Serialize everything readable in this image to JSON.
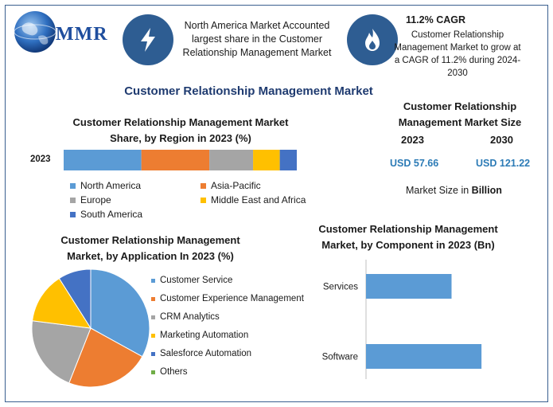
{
  "logo": {
    "text": "MMR"
  },
  "header": {
    "info1_icon": "lightning-bolt-icon",
    "info1_text": "North America Market Accounted largest share in the Customer Relationship Management Market",
    "info2_icon": "flame-icon",
    "info2_title": "11.2% CAGR",
    "info2_text": "Customer Relationship Management Market to grow at a CAGR of 11.2% during 2024-2030"
  },
  "main_title": "Customer Relationship Management Market",
  "market_size": {
    "title": "Customer Relationship Management Market Size",
    "year1": "2023",
    "year2": "2030",
    "value1": "USD 57.66",
    "value2": "USD 121.22",
    "note_prefix": "Market Size in ",
    "note_unit": "Billion"
  },
  "chart_data": [
    {
      "type": "bar",
      "orientation": "horizontal-stacked",
      "title": "Customer Relationship Management Market Share, by Region in 2023 (%)",
      "categories": [
        "2023"
      ],
      "series": [
        {
          "name": "North America",
          "values": [
            32
          ],
          "color": "#5b9bd5"
        },
        {
          "name": "Asia-Pacific",
          "values": [
            28
          ],
          "color": "#ed7d31"
        },
        {
          "name": "Europe",
          "values": [
            18
          ],
          "color": "#a5a5a5"
        },
        {
          "name": "Middle East and Africa",
          "values": [
            11
          ],
          "color": "#ffc000"
        },
        {
          "name": "South America",
          "values": [
            7
          ],
          "color": "#4472c4"
        }
      ],
      "legend": "bottom"
    },
    {
      "type": "pie",
      "title": "Customer Relationship Management Market, by Application In 2023 (%)",
      "labels": [
        "Customer Service",
        "Customer Experience Management",
        "CRM Analytics",
        "Marketing Automation",
        "Salesforce Automation",
        "Others"
      ],
      "values": [
        33,
        23,
        21,
        14,
        9,
        0
      ],
      "colors": [
        "#5b9bd5",
        "#ed7d31",
        "#a5a5a5",
        "#ffc000",
        "#4472c4",
        "#70ad47"
      ],
      "legend": "right"
    },
    {
      "type": "bar",
      "orientation": "horizontal",
      "title": "Customer Relationship Management Market, by Component in 2023 (Bn)",
      "categories": [
        "Services",
        "Software"
      ],
      "values": [
        20,
        27
      ],
      "xlim": [
        0,
        40
      ],
      "color": "#5b9bd5"
    }
  ]
}
